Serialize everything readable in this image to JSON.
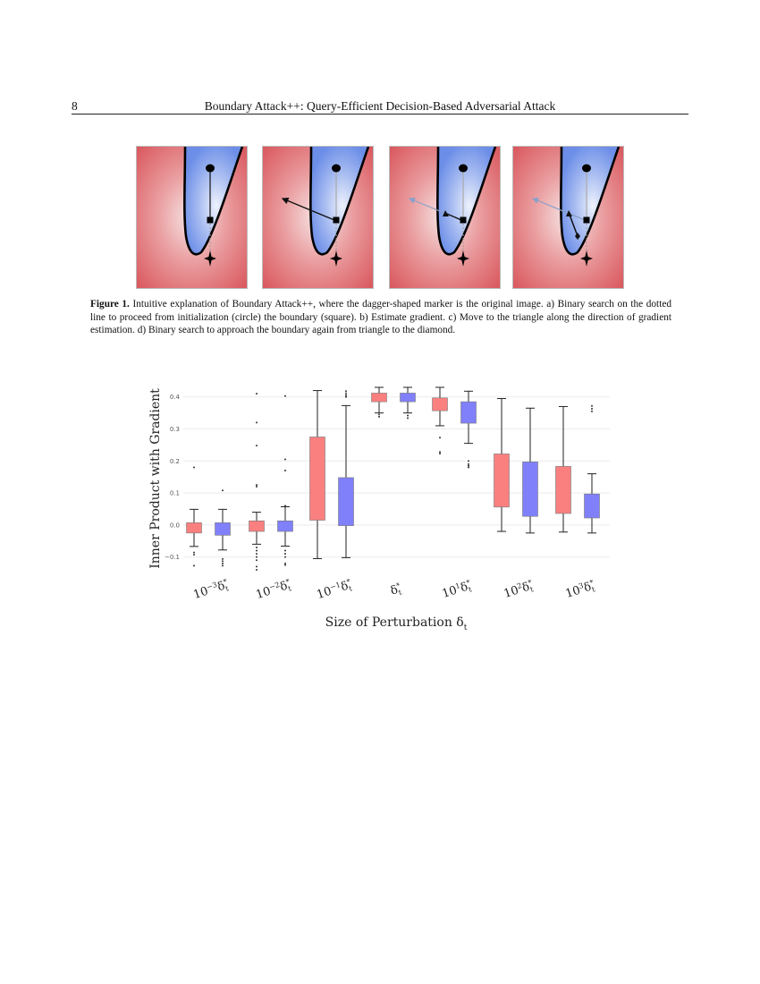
{
  "header": {
    "page_number": "8",
    "running_title": "Boundary Attack++: Query-Efficient Decision-Based Adversarial Attack"
  },
  "figure1": {
    "panels": [
      "a",
      "b",
      "c",
      "d"
    ],
    "colors": {
      "adversarial_region": "#d9585e",
      "original_region": "#6c8ee8",
      "boundary": "#000000"
    },
    "markers": [
      "circle-marker",
      "square-marker",
      "triangle-marker",
      "diamond-marker",
      "dagger-marker"
    ],
    "caption": {
      "label": "Figure 1.",
      "text": " Intuitive explanation of Boundary Attack++, where the dagger-shaped marker is the original image. a) Binary search on the dotted line to proceed from initialization (circle) the boundary (square). b) Estimate gradient. c) Move to the triangle along the direction of gradient estimation. d) Binary search to approach the boundary again from triangle to the diamond."
    }
  },
  "chart_data": {
    "type": "box",
    "xlabel": "Size of Perturbation δt",
    "ylabel": "Inner Product with Gradient",
    "ylim": [
      -0.14,
      0.43
    ],
    "yticks": [
      "−0.1",
      "0.0",
      "0.1",
      "0.2",
      "0.3",
      "0.4"
    ],
    "ytick_values": [
      -0.1,
      0.0,
      0.1,
      0.2,
      0.3,
      0.4
    ],
    "grid": true,
    "colors": {
      "red": "#fa8080",
      "blue": "#8080fa"
    },
    "categories": [
      {
        "base": "10",
        "exp": "−3",
        "symbol": "δ",
        "sub": "t",
        "sup": "*"
      },
      {
        "base": "10",
        "exp": "−2",
        "symbol": "δ",
        "sub": "t",
        "sup": "*"
      },
      {
        "base": "10",
        "exp": "−1",
        "symbol": "δ",
        "sub": "t",
        "sup": "*"
      },
      {
        "base": "",
        "exp": "",
        "symbol": "δ",
        "sub": "t",
        "sup": "*"
      },
      {
        "base": "10",
        "exp": "1",
        "symbol": "δ",
        "sub": "t",
        "sup": "*"
      },
      {
        "base": "10",
        "exp": "2",
        "symbol": "δ",
        "sub": "t",
        "sup": "*"
      },
      {
        "base": "10",
        "exp": "3",
        "symbol": "δ",
        "sub": "t",
        "sup": "*"
      }
    ],
    "boxes": [
      {
        "group": 0,
        "color": "red",
        "whislo": -0.067,
        "q1": -0.025,
        "med": -0.012,
        "q3": 0.007,
        "whishi": 0.049,
        "fliers": [
          0.18,
          -0.086,
          -0.093,
          -0.127
        ]
      },
      {
        "group": 0,
        "color": "blue",
        "whislo": -0.078,
        "q1": -0.032,
        "med": -0.018,
        "q3": 0.007,
        "whishi": 0.049,
        "fliers": [
          0.108,
          -0.106,
          -0.113,
          -0.12,
          -0.127
        ]
      },
      {
        "group": 1,
        "color": "red",
        "whislo": -0.06,
        "q1": -0.02,
        "med": -0.004,
        "q3": 0.013,
        "whishi": 0.04,
        "fliers": [
          0.41,
          0.32,
          0.248,
          0.125,
          0.12,
          -0.07,
          -0.08,
          -0.09,
          -0.1,
          -0.11,
          -0.13,
          -0.14
        ]
      },
      {
        "group": 1,
        "color": "blue",
        "whislo": -0.066,
        "q1": -0.02,
        "med": -0.003,
        "q3": 0.013,
        "whishi": 0.057,
        "fliers": [
          0.403,
          0.205,
          0.17,
          0.06,
          -0.08,
          -0.09,
          -0.1,
          -0.12,
          -0.125
        ]
      },
      {
        "group": 2,
        "color": "red",
        "whislo": -0.105,
        "q1": 0.015,
        "med": 0.1,
        "q3": 0.275,
        "whishi": 0.42,
        "fliers": []
      },
      {
        "group": 2,
        "color": "blue",
        "whislo": -0.102,
        "q1": -0.002,
        "med": 0.075,
        "q3": 0.148,
        "whishi": 0.373,
        "fliers": [
          0.418,
          0.411,
          0.405,
          0.4
        ]
      },
      {
        "group": 3,
        "color": "red",
        "whislo": 0.35,
        "q1": 0.385,
        "med": 0.402,
        "q3": 0.412,
        "whishi": 0.43,
        "fliers": [
          0.338,
          0.345
        ]
      },
      {
        "group": 3,
        "color": "blue",
        "whislo": 0.35,
        "q1": 0.385,
        "med": 0.402,
        "q3": 0.412,
        "whishi": 0.43,
        "fliers": [
          0.334,
          0.342
        ]
      },
      {
        "group": 4,
        "color": "red",
        "whislo": 0.31,
        "q1": 0.357,
        "med": 0.375,
        "q3": 0.397,
        "whishi": 0.43,
        "fliers": [
          0.273,
          0.228,
          0.223
        ]
      },
      {
        "group": 4,
        "color": "blue",
        "whislo": 0.255,
        "q1": 0.318,
        "med": 0.35,
        "q3": 0.385,
        "whishi": 0.418,
        "fliers": [
          0.2,
          0.19,
          0.185,
          0.18
        ]
      },
      {
        "group": 5,
        "color": "red",
        "whislo": -0.02,
        "q1": 0.056,
        "med": 0.11,
        "q3": 0.222,
        "whishi": 0.395,
        "fliers": []
      },
      {
        "group": 5,
        "color": "blue",
        "whislo": -0.025,
        "q1": 0.027,
        "med": 0.1,
        "q3": 0.197,
        "whishi": 0.365,
        "fliers": []
      },
      {
        "group": 6,
        "color": "red",
        "whislo": -0.022,
        "q1": 0.036,
        "med": 0.09,
        "q3": 0.183,
        "whishi": 0.37,
        "fliers": []
      },
      {
        "group": 6,
        "color": "blue",
        "whislo": -0.025,
        "q1": 0.022,
        "med": 0.05,
        "q3": 0.097,
        "whishi": 0.16,
        "fliers": [
          0.372,
          0.363,
          0.355
        ]
      }
    ]
  }
}
